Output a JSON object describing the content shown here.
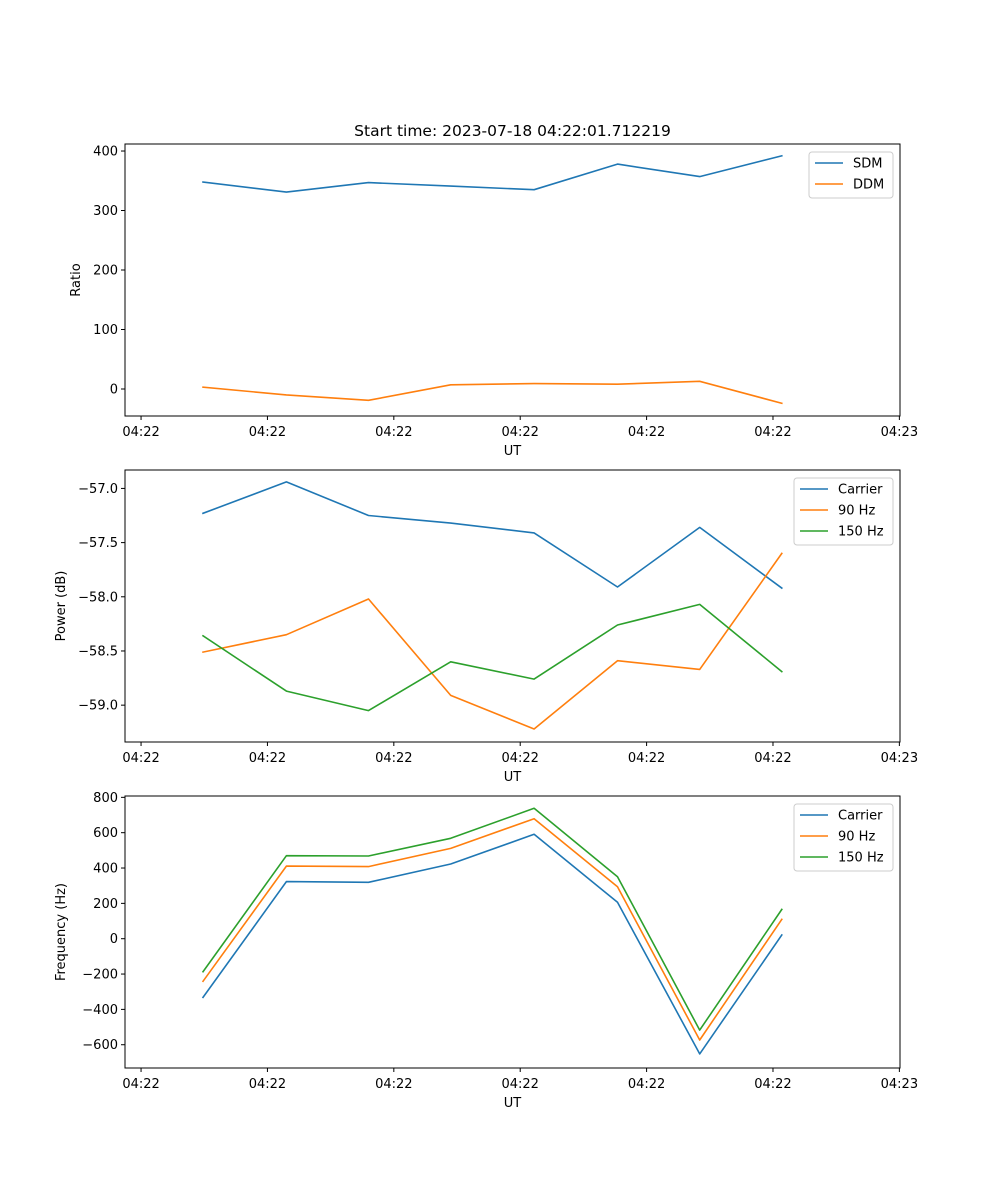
{
  "chart_data": [
    {
      "type": "line",
      "title": "Start time: 2023-07-18 04:22:01.712219",
      "xlabel": "UT",
      "ylabel": "Ratio",
      "x": [
        0.49,
        1.15,
        1.8,
        2.45,
        3.11,
        3.77,
        4.42,
        5.07
      ],
      "x_units": "tick index",
      "xlim": [
        -0.127,
        6.005
      ],
      "xticks": [
        0,
        1,
        2,
        3,
        4,
        5,
        6
      ],
      "xtick_labels": [
        "04:22",
        "04:22",
        "04:22",
        "04:22",
        "04:22",
        "04:22",
        "04:23"
      ],
      "ylim": [
        -45.4,
        411.8
      ],
      "yticks": [
        0,
        100,
        200,
        300,
        400
      ],
      "ytick_labels": [
        "0",
        "100",
        "200",
        "300",
        "400"
      ],
      "grid": false,
      "legend": "top-right",
      "series": [
        {
          "name": "SDM",
          "color": "#1f77b4",
          "values": [
            348,
            331,
            347,
            341,
            335,
            378,
            357,
            392
          ]
        },
        {
          "name": "DDM",
          "color": "#ff7f0e",
          "values": [
            3,
            -10,
            -19,
            7,
            9,
            8,
            13,
            -24
          ]
        }
      ]
    },
    {
      "type": "line",
      "title": "",
      "xlabel": "UT",
      "ylabel": "Power (dB)",
      "x": [
        0.49,
        1.15,
        1.8,
        2.45,
        3.11,
        3.77,
        4.42,
        5.07
      ],
      "x_units": "tick index",
      "xlim": [
        -0.127,
        6.005
      ],
      "xticks": [
        0,
        1,
        2,
        3,
        4,
        5,
        6
      ],
      "xtick_labels": [
        "04:22",
        "04:22",
        "04:22",
        "04:22",
        "04:22",
        "04:22",
        "04:23"
      ],
      "ylim": [
        -59.34,
        -56.83
      ],
      "yticks": [
        -59.0,
        -58.5,
        -58.0,
        -57.5,
        -57.0
      ],
      "ytick_labels": [
        "−59.0",
        "−58.5",
        "−58.0",
        "−57.5",
        "−57.0"
      ],
      "grid": false,
      "legend": "top-right",
      "series": [
        {
          "name": "Carrier",
          "color": "#1f77b4",
          "values": [
            -57.23,
            -56.94,
            -57.25,
            -57.32,
            -57.41,
            -57.91,
            -57.36,
            -57.92
          ]
        },
        {
          "name": "90 Hz",
          "color": "#ff7f0e",
          "values": [
            -58.51,
            -58.35,
            -58.02,
            -58.91,
            -59.22,
            -58.59,
            -58.67,
            -57.6
          ]
        },
        {
          "name": "150 Hz",
          "color": "#2ca02c",
          "values": [
            -58.36,
            -58.87,
            -59.05,
            -58.6,
            -58.76,
            -58.26,
            -58.07,
            -58.69
          ]
        }
      ]
    },
    {
      "type": "line",
      "title": "",
      "xlabel": "UT",
      "ylabel": "Frequency (Hz)",
      "x": [
        0.49,
        1.15,
        1.8,
        2.45,
        3.11,
        3.77,
        4.42,
        5.07
      ],
      "x_units": "tick index",
      "xlim": [
        -0.127,
        6.005
      ],
      "xticks": [
        0,
        1,
        2,
        3,
        4,
        5,
        6
      ],
      "xtick_labels": [
        "04:22",
        "04:22",
        "04:22",
        "04:22",
        "04:22",
        "04:22",
        "04:23"
      ],
      "ylim": [
        -731.7,
        807.6
      ],
      "yticks": [
        -600,
        -400,
        -200,
        0,
        200,
        400,
        600,
        800
      ],
      "ytick_labels": [
        "−600",
        "−400",
        "−200",
        "0",
        "200",
        "400",
        "600",
        "800"
      ],
      "grid": false,
      "legend": "top-right",
      "series": [
        {
          "name": "Carrier",
          "color": "#1f77b4",
          "values": [
            -332,
            323,
            319,
            423,
            591,
            206,
            -652,
            21
          ]
        },
        {
          "name": "90 Hz",
          "color": "#ff7f0e",
          "values": [
            -241,
            411,
            408,
            511,
            679,
            294,
            -573,
            110
          ]
        },
        {
          "name": "150 Hz",
          "color": "#2ca02c",
          "values": [
            -187,
            470,
            468,
            568,
            738,
            351,
            -517,
            166
          ]
        }
      ]
    }
  ]
}
